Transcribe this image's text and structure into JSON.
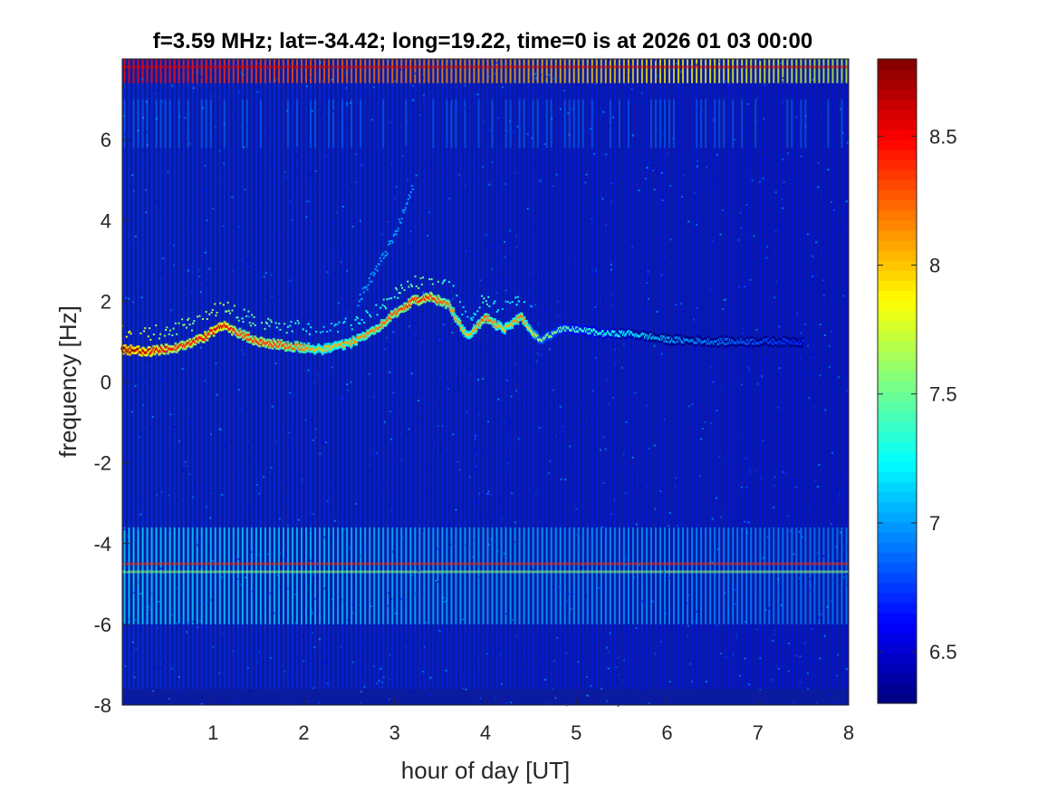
{
  "chart_data": {
    "type": "heatmap",
    "title": "f=3.59 MHz;  lat=-34.42; long=19.22, time=0 is at 2026 01 03 00:00",
    "xlabel": "hour of day [UT]",
    "ylabel": "frequency [Hz]",
    "xlim": [
      0,
      8
    ],
    "ylim": [
      -8,
      8
    ],
    "xticks": [
      1,
      2,
      3,
      4,
      5,
      6,
      7,
      8
    ],
    "yticks": [
      -8,
      -6,
      -4,
      -2,
      0,
      2,
      4,
      6
    ],
    "colormap": "jet",
    "color_limits": [
      6.3,
      8.8
    ],
    "colorbar_ticks": [
      6.5,
      7,
      7.5,
      8,
      8.5
    ],
    "background_level": 6.45,
    "main_trace": {
      "description_hours": [
        0.0,
        0.3,
        0.6,
        0.9,
        1.1,
        1.3,
        1.5,
        1.8,
        2.0,
        2.2,
        2.5,
        2.8,
        3.0,
        3.2,
        3.4,
        3.6,
        3.8,
        4.0,
        4.2,
        4.4,
        4.6,
        4.8,
        5.0,
        5.3,
        5.6,
        6.0,
        6.5,
        7.0,
        7.5
      ],
      "frequency_hz": [
        0.8,
        0.75,
        0.85,
        1.1,
        1.4,
        1.2,
        1.0,
        0.9,
        0.85,
        0.8,
        0.95,
        1.3,
        1.7,
        2.0,
        2.1,
        1.9,
        1.1,
        1.6,
        1.3,
        1.6,
        1.0,
        1.3,
        1.3,
        1.2,
        1.2,
        1.05,
        1.0,
        1.0,
        1.0
      ],
      "level": [
        8.8,
        8.6,
        8.4,
        8.5,
        8.6,
        8.3,
        8.4,
        8.3,
        8.2,
        8.0,
        8.1,
        8.2,
        8.3,
        8.4,
        8.4,
        8.2,
        8.0,
        8.3,
        8.0,
        8.2,
        7.6,
        7.5,
        7.4,
        7.3,
        7.2,
        7.0,
        6.9,
        6.8,
        6.7
      ]
    },
    "secondary_trace": {
      "description_hours": [
        2.6,
        2.8,
        3.0,
        3.1,
        3.2
      ],
      "frequency_hz": [
        2.0,
        2.8,
        3.6,
        4.2,
        4.8
      ],
      "level": 7.0
    },
    "bands": [
      {
        "frequency_hz": 7.8,
        "level": 8.6
      },
      {
        "frequency_hz": -4.5,
        "level": 8.4
      },
      {
        "frequency_hz": -4.7,
        "level": 7.6
      }
    ]
  }
}
